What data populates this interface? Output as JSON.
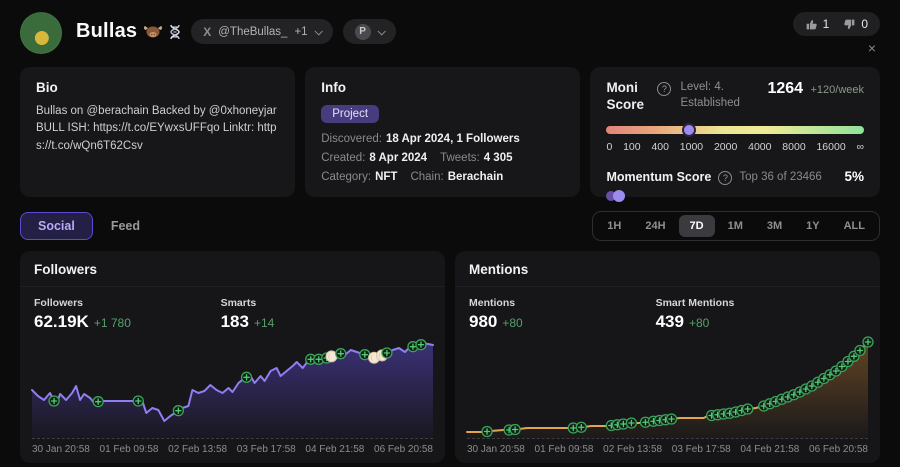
{
  "header": {
    "title": "Bullas",
    "title_icons": [
      "ox-icon",
      "dna-icon"
    ],
    "x_logo": "X",
    "x_handle": "@TheBullas_",
    "x_extra": "+1",
    "platform_letter": "P",
    "likes": "1",
    "dislikes": "0",
    "close": "×",
    "help_glyph": "?"
  },
  "bio": {
    "title": "Bio",
    "text": "Bullas on @berachain Backed by @0xhoneyjar BULL ISH: https://t.co/EYwxsUFFqo Linktr: https://t.co/wQn6T62Csv"
  },
  "info": {
    "title": "Info",
    "badge": "Project",
    "fields": [
      {
        "label": "Discovered:",
        "value": "18 Apr 2024, 1 Followers"
      },
      {
        "label": "Created:",
        "value": "8 Apr 2024"
      },
      {
        "label": "Tweets:",
        "value": "4 305"
      },
      {
        "label": "Category:",
        "value": "NFT"
      },
      {
        "label": "Chain:",
        "value": "Berachain"
      }
    ]
  },
  "moni": {
    "title": "Moni Score",
    "level": "Level: 4. Established",
    "score": "1264",
    "weekly": "+120/week",
    "scale": [
      "0",
      "100",
      "400",
      "1000",
      "2000",
      "4000",
      "8000",
      "16000",
      "∞"
    ],
    "thumb_pos_pct": 32,
    "momentum_label": "Momentum Score",
    "momentum_rank": "Top 36 of 23466",
    "momentum_pct": "5%"
  },
  "tabs": {
    "social": "Social",
    "feed": "Feed"
  },
  "ranges": [
    "1H",
    "24H",
    "7D",
    "1M",
    "3M",
    "1Y",
    "ALL"
  ],
  "selected_range": "7D",
  "chart_data": [
    {
      "type": "area",
      "title": "Followers",
      "stats": [
        {
          "label": "Followers",
          "value": "62.19K",
          "delta": "+1 780"
        },
        {
          "label": "Smarts",
          "value": "183",
          "delta": "+14"
        }
      ],
      "x_ticks": [
        "30 Jan 20:58",
        "01 Feb 09:58",
        "02 Feb 13:58",
        "03 Feb 17:58",
        "04 Feb 21:58",
        "06 Feb 20:58"
      ],
      "y_axis_visible": false,
      "line_color": "#8f7df2",
      "area_color": "#5a46c4",
      "points": [
        [
          0,
          48
        ],
        [
          1.5,
          42
        ],
        [
          3,
          38
        ],
        [
          4.5,
          45
        ],
        [
          6,
          33
        ],
        [
          7,
          44
        ],
        [
          8.5,
          38
        ],
        [
          10,
          45
        ],
        [
          11,
          52
        ],
        [
          12,
          38
        ],
        [
          13,
          44
        ],
        [
          14.5,
          40
        ],
        [
          15.5,
          35
        ],
        [
          17,
          37
        ],
        [
          27.5,
          37
        ],
        [
          28.5,
          25
        ],
        [
          30,
          30
        ],
        [
          31.5,
          28
        ],
        [
          33,
          17
        ],
        [
          34.5,
          22
        ],
        [
          36,
          26
        ],
        [
          37.5,
          30
        ],
        [
          39,
          32
        ],
        [
          40,
          48
        ],
        [
          41.5,
          45
        ],
        [
          43,
          47
        ],
        [
          44.5,
          53
        ],
        [
          46,
          48
        ],
        [
          47.5,
          45
        ],
        [
          49,
          50
        ],
        [
          50,
          46
        ],
        [
          51.5,
          55
        ],
        [
          53,
          60
        ],
        [
          54.5,
          62
        ],
        [
          55.5,
          55
        ],
        [
          57,
          62
        ],
        [
          58,
          57
        ],
        [
          59.5,
          67
        ],
        [
          61,
          70
        ],
        [
          62,
          62
        ],
        [
          63.5,
          67
        ],
        [
          65,
          72
        ],
        [
          66,
          76
        ],
        [
          67.5,
          70
        ],
        [
          69,
          78
        ],
        [
          70.5,
          80
        ],
        [
          72,
          78
        ],
        [
          73.5,
          80
        ],
        [
          75,
          82
        ],
        [
          76.5,
          85
        ],
        [
          78,
          83
        ],
        [
          79.5,
          88
        ],
        [
          81,
          86
        ],
        [
          82.5,
          84
        ],
        [
          84,
          82
        ],
        [
          85.5,
          80
        ],
        [
          87,
          82
        ],
        [
          88.5,
          85
        ],
        [
          90,
          88
        ],
        [
          91.5,
          90
        ],
        [
          93,
          86
        ],
        [
          94.5,
          92
        ],
        [
          96,
          90
        ],
        [
          97.5,
          95
        ],
        [
          100,
          93
        ]
      ],
      "markers": [
        {
          "x": 5.5,
          "type": "green"
        },
        {
          "x": 16.5,
          "type": "green"
        },
        {
          "x": 26.5,
          "type": "green"
        },
        {
          "x": 36.5,
          "type": "green"
        },
        {
          "x": 53.5,
          "type": "green"
        },
        {
          "x": 69.5,
          "type": "green"
        },
        {
          "x": 71.5,
          "type": "green"
        },
        {
          "x": 73.5,
          "type": "green"
        },
        {
          "x": 74.7,
          "type": "white"
        },
        {
          "x": 77,
          "type": "green"
        },
        {
          "x": 83,
          "type": "green"
        },
        {
          "x": 85.3,
          "type": "white"
        },
        {
          "x": 87.3,
          "type": "white"
        },
        {
          "x": 88.5,
          "type": "green"
        },
        {
          "x": 95,
          "type": "green"
        },
        {
          "x": 97,
          "type": "green"
        }
      ]
    },
    {
      "type": "area",
      "title": "Mentions",
      "stats": [
        {
          "label": "Mentions",
          "value": "980",
          "delta": "+80"
        },
        {
          "label": "Smart Mentions",
          "value": "439",
          "delta": "+80"
        }
      ],
      "x_ticks": [
        "30 Jan 20:58",
        "01 Feb 09:58",
        "02 Feb 13:58",
        "03 Feb 17:58",
        "04 Feb 21:58",
        "06 Feb 20:58"
      ],
      "y_axis_visible": false,
      "line_color": "#e3a44f",
      "area_color": "#a06a2e",
      "points": [
        [
          0,
          6
        ],
        [
          4,
          6
        ],
        [
          6,
          7
        ],
        [
          9,
          8
        ],
        [
          11,
          8
        ],
        [
          13,
          9
        ],
        [
          15,
          10
        ],
        [
          27,
          10
        ],
        [
          29,
          11
        ],
        [
          31,
          12
        ],
        [
          35,
          12
        ],
        [
          37,
          13
        ],
        [
          39,
          14
        ],
        [
          40,
          15
        ],
        [
          43,
          15
        ],
        [
          45,
          16
        ],
        [
          47,
          17
        ],
        [
          49,
          18
        ],
        [
          51,
          19
        ],
        [
          53,
          20
        ],
        [
          59,
          20
        ],
        [
          60,
          22
        ],
        [
          62,
          23
        ],
        [
          64,
          24
        ],
        [
          66,
          25
        ],
        [
          68,
          27
        ],
        [
          70,
          29
        ],
        [
          72,
          30
        ],
        [
          74,
          32
        ],
        [
          76,
          35
        ],
        [
          78,
          38
        ],
        [
          80,
          41
        ],
        [
          82,
          44
        ],
        [
          84,
          48
        ],
        [
          86,
          52
        ],
        [
          88,
          57
        ],
        [
          90,
          62
        ],
        [
          92,
          67
        ],
        [
          94,
          73
        ],
        [
          96,
          80
        ],
        [
          97.5,
          85
        ],
        [
          98.5,
          90
        ],
        [
          100,
          96
        ]
      ],
      "markers": [
        {
          "x": 5,
          "type": "green"
        },
        {
          "x": 10.5,
          "type": "green"
        },
        {
          "x": 12,
          "type": "green"
        },
        {
          "x": 26.5,
          "type": "green"
        },
        {
          "x": 28.5,
          "type": "green"
        },
        {
          "x": 36,
          "type": "green"
        },
        {
          "x": 37.5,
          "type": "green"
        },
        {
          "x": 39,
          "type": "green"
        },
        {
          "x": 41,
          "type": "green"
        },
        {
          "x": 44.5,
          "type": "green"
        },
        {
          "x": 46.5,
          "type": "green"
        },
        {
          "x": 48,
          "type": "green"
        },
        {
          "x": 49.5,
          "type": "green"
        },
        {
          "x": 51,
          "type": "green"
        },
        {
          "x": 61,
          "type": "green"
        },
        {
          "x": 62.5,
          "type": "green"
        },
        {
          "x": 64,
          "type": "green"
        },
        {
          "x": 65.5,
          "type": "green"
        },
        {
          "x": 67,
          "type": "green"
        },
        {
          "x": 68.5,
          "type": "green"
        },
        {
          "x": 70,
          "type": "green"
        },
        {
          "x": 74,
          "type": "green"
        },
        {
          "x": 75.5,
          "type": "green"
        },
        {
          "x": 77,
          "type": "green"
        },
        {
          "x": 78.5,
          "type": "green"
        },
        {
          "x": 80,
          "type": "green"
        },
        {
          "x": 81.5,
          "type": "green"
        },
        {
          "x": 83,
          "type": "green"
        },
        {
          "x": 84.5,
          "type": "green"
        },
        {
          "x": 86,
          "type": "green"
        },
        {
          "x": 87.5,
          "type": "green"
        },
        {
          "x": 89,
          "type": "green"
        },
        {
          "x": 90.5,
          "type": "green"
        },
        {
          "x": 92,
          "type": "green"
        },
        {
          "x": 93.5,
          "type": "green"
        },
        {
          "x": 95,
          "type": "green"
        },
        {
          "x": 96.5,
          "type": "green"
        },
        {
          "x": 98,
          "type": "green"
        },
        {
          "x": 100,
          "type": "green"
        }
      ]
    }
  ]
}
